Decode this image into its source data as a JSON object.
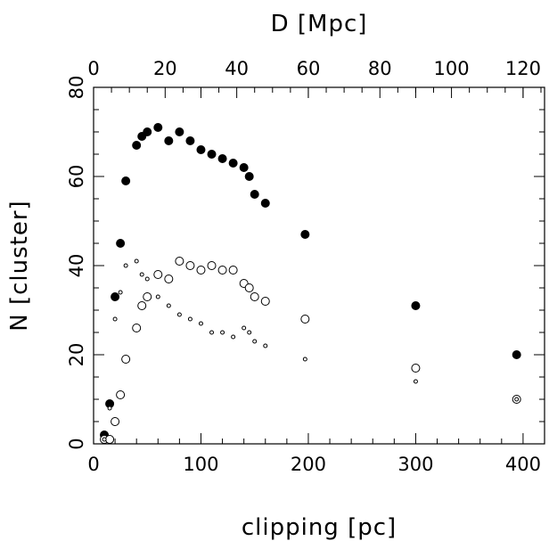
{
  "chart_data": {
    "type": "scatter",
    "title": "",
    "xlabel": "clipping [pc]",
    "ylabel": "N [cluster]",
    "x2label": "D [Mpc]",
    "xlim": [
      0,
      420
    ],
    "ylim": [
      0,
      80
    ],
    "x2lim": [
      0,
      126
    ],
    "xticks": [
      0,
      100,
      200,
      300,
      400
    ],
    "x2ticks": [
      0,
      20,
      40,
      60,
      80,
      100,
      120
    ],
    "yticks": [
      0,
      20,
      40,
      60,
      80
    ],
    "grid": false,
    "colors": {
      "stroke": "#000000",
      "filled": "#000000",
      "open": "#ffffff"
    },
    "series": [
      {
        "marker": "filled-circle-large",
        "x": [
          10,
          15,
          20,
          25,
          30,
          40,
          45,
          50,
          60,
          70,
          80,
          90,
          100,
          110,
          120,
          130,
          140,
          145,
          150,
          160,
          197,
          300,
          394
        ],
        "y": [
          2,
          9,
          33,
          45,
          59,
          67,
          69,
          70,
          71,
          68,
          70,
          68,
          66,
          65,
          64,
          63,
          62,
          60,
          56,
          54,
          47,
          31,
          20
        ]
      },
      {
        "marker": "open-circle-large",
        "x": [
          10,
          15,
          20,
          25,
          30,
          40,
          45,
          50,
          60,
          70,
          80,
          90,
          100,
          110,
          120,
          130,
          140,
          145,
          150,
          160,
          197,
          300,
          394
        ],
        "y": [
          1,
          1,
          5,
          11,
          19,
          26,
          31,
          33,
          38,
          37,
          41,
          40,
          39,
          40,
          39,
          39,
          36,
          35,
          33,
          32,
          28,
          17,
          10
        ]
      },
      {
        "marker": "open-circle-small",
        "x": [
          10,
          15,
          20,
          25,
          30,
          40,
          45,
          50,
          60,
          70,
          80,
          90,
          100,
          110,
          120,
          130,
          140,
          145,
          150,
          160,
          197,
          300,
          394
        ],
        "y": [
          1,
          8,
          28,
          34,
          40,
          41,
          38,
          37,
          33,
          31,
          29,
          28,
          27,
          25,
          25,
          24,
          26,
          25,
          23,
          22,
          19,
          14,
          10
        ]
      }
    ]
  }
}
